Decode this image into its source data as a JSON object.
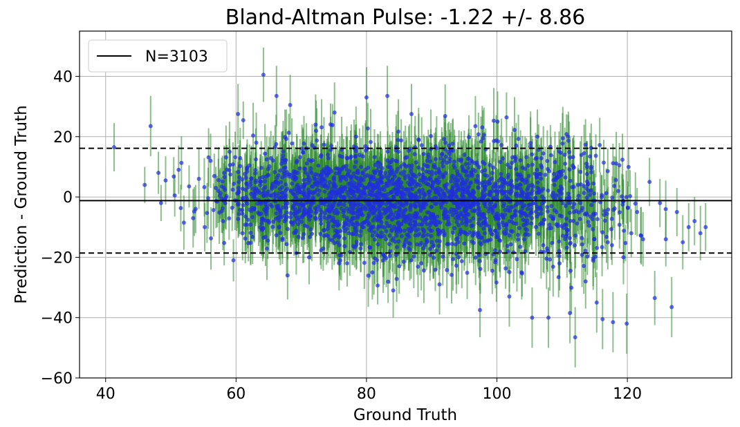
{
  "chart_data": {
    "type": "scatter",
    "title": "Bland-Altman Pulse: -1.22 +/- 8.86",
    "xlabel": "Ground Truth",
    "ylabel": "Prediction - Ground Truth",
    "xlim": [
      36,
      136
    ],
    "ylim": [
      -60,
      55
    ],
    "xticks": [
      40,
      60,
      80,
      100,
      120
    ],
    "yticks": [
      -60,
      -40,
      -20,
      0,
      20,
      40
    ],
    "ytick_labels": [
      "−60",
      "−40",
      "−20",
      "0",
      "20",
      "40"
    ],
    "grid": true,
    "legend": {
      "position": "top-left",
      "entries": [
        {
          "label": "N=3103",
          "color": "#000000",
          "style": "solid-line"
        }
      ]
    },
    "mean_line": {
      "y": -1.22,
      "color": "#000000",
      "style": "solid"
    },
    "limits_of_agreement": [
      {
        "y": 16.15,
        "color": "#000000",
        "style": "dashed"
      },
      {
        "y": -18.59,
        "color": "#000000",
        "style": "dashed"
      }
    ],
    "point_color": "#1f2de0",
    "errorbar_color": "#2e8b2e",
    "n_points": 3103,
    "points": [
      [
        41.3,
        16.5,
        8
      ],
      [
        46.0,
        4.0,
        6
      ],
      [
        46.9,
        23.5,
        10
      ],
      [
        48.1,
        8.0,
        7
      ],
      [
        48.5,
        -2.0,
        6
      ],
      [
        49.2,
        5.5,
        8
      ],
      [
        50.6,
        0.5,
        7
      ],
      [
        51.2,
        9.0,
        8
      ],
      [
        52.0,
        -8.5,
        9
      ],
      [
        52.8,
        3.5,
        7
      ],
      [
        53.8,
        -4.0,
        8
      ],
      [
        54.3,
        6.0,
        10
      ],
      [
        55.2,
        -10.0,
        8
      ],
      [
        56.1,
        12.0,
        9
      ],
      [
        56.9,
        3.0,
        7
      ],
      [
        58.2,
        8.0,
        9
      ],
      [
        59.0,
        15.0,
        10
      ],
      [
        59.6,
        -21.0,
        7
      ],
      [
        60.3,
        27.5,
        10
      ],
      [
        61.0,
        -12.0,
        9
      ],
      [
        62.2,
        5.0,
        8
      ],
      [
        63.1,
        18.0,
        10
      ],
      [
        64.2,
        40.5,
        9
      ],
      [
        65.0,
        -8.0,
        8
      ],
      [
        66.2,
        33.5,
        10
      ],
      [
        67.1,
        12.0,
        9
      ],
      [
        67.9,
        -26.0,
        8
      ],
      [
        68.3,
        30.5,
        10
      ],
      [
        69.4,
        2.0,
        9
      ],
      [
        70.1,
        16.0,
        8
      ],
      [
        71.2,
        -20.0,
        9
      ],
      [
        72.2,
        24.0,
        10
      ],
      [
        73.0,
        -6.0,
        9
      ],
      [
        74.2,
        8.0,
        8
      ],
      [
        75.1,
        28.0,
        10
      ],
      [
        75.8,
        -22.0,
        9
      ],
      [
        76.6,
        3.0,
        8
      ],
      [
        77.3,
        -12.0,
        9
      ],
      [
        78.4,
        20.0,
        10
      ],
      [
        79.1,
        -4.0,
        8
      ],
      [
        80.0,
        33.0,
        10
      ],
      [
        80.9,
        -25.0,
        9
      ],
      [
        81.8,
        10.0,
        8
      ],
      [
        82.5,
        -2.0,
        9
      ],
      [
        83.2,
        33.5,
        10
      ],
      [
        84.1,
        -31.0,
        9
      ],
      [
        85.0,
        6.0,
        8
      ],
      [
        85.9,
        -15.0,
        9
      ],
      [
        86.9,
        27.5,
        10
      ],
      [
        87.6,
        0.0,
        8
      ],
      [
        88.4,
        -22.0,
        9
      ],
      [
        89.3,
        12.0,
        8
      ],
      [
        90.2,
        -6.0,
        9
      ],
      [
        91.2,
        -29.0,
        10
      ],
      [
        92.1,
        18.0,
        9
      ],
      [
        93.0,
        2.0,
        8
      ],
      [
        94.1,
        -20.0,
        9
      ],
      [
        95.0,
        14.0,
        8
      ],
      [
        95.9,
        -8.0,
        9
      ],
      [
        96.7,
        23.5,
        10
      ],
      [
        97.4,
        -37.5,
        9
      ],
      [
        98.2,
        5.0,
        8
      ],
      [
        99.1,
        -12.0,
        9
      ],
      [
        100.1,
        25.0,
        10
      ],
      [
        101.0,
        -3.0,
        8
      ],
      [
        101.9,
        -33.0,
        10
      ],
      [
        102.8,
        12.0,
        9
      ],
      [
        103.8,
        -25.0,
        9
      ],
      [
        104.6,
        0.0,
        8
      ],
      [
        105.4,
        -40.0,
        10
      ],
      [
        106.2,
        20.0,
        9
      ],
      [
        107.1,
        -16.0,
        9
      ],
      [
        107.9,
        -40.0,
        10
      ],
      [
        108.8,
        4.0,
        8
      ],
      [
        109.6,
        -22.0,
        9
      ],
      [
        110.4,
        14.0,
        9
      ],
      [
        111.2,
        -38.5,
        10
      ],
      [
        112.0,
        -46.5,
        10
      ],
      [
        112.8,
        -2.0,
        9
      ],
      [
        113.6,
        -28.0,
        9
      ],
      [
        114.5,
        10.0,
        9
      ],
      [
        115.3,
        -35.0,
        10
      ],
      [
        116.2,
        -40.5,
        10
      ],
      [
        117.0,
        -15.0,
        9
      ],
      [
        117.8,
        -41.5,
        10
      ],
      [
        118.6,
        2.0,
        8
      ],
      [
        119.4,
        -20.0,
        9
      ],
      [
        119.9,
        -42.0,
        10
      ],
      [
        120.6,
        -12.0,
        8
      ],
      [
        121.5,
        -5.0,
        8
      ],
      [
        122.4,
        -14.0,
        9
      ],
      [
        123.4,
        5.0,
        8
      ],
      [
        124.2,
        -33.5,
        9
      ],
      [
        125.0,
        -2.0,
        8
      ],
      [
        125.9,
        -14.0,
        9
      ],
      [
        126.8,
        -36.5,
        10
      ],
      [
        127.6,
        -5.0,
        8
      ],
      [
        128.5,
        -15.0,
        9
      ],
      [
        129.4,
        -10.0,
        8
      ],
      [
        130.3,
        -8.0,
        8
      ],
      [
        131.2,
        -12.0,
        9
      ],
      [
        132.0,
        -10.0,
        8
      ]
    ],
    "density_cloud": [
      {
        "x": 66,
        "y": 1,
        "sx": 5,
        "sy": 7,
        "n": 360
      },
      {
        "x": 77,
        "y": 0,
        "sx": 6,
        "sy": 8,
        "n": 620
      },
      {
        "x": 87,
        "y": -2,
        "sx": 6,
        "sy": 9,
        "n": 620
      },
      {
        "x": 97,
        "y": -2,
        "sx": 6,
        "sy": 9,
        "n": 460
      },
      {
        "x": 106,
        "y": -1,
        "sx": 5,
        "sy": 9,
        "n": 260
      },
      {
        "x": 114,
        "y": -4,
        "sx": 4,
        "sy": 10,
        "n": 110
      }
    ]
  }
}
